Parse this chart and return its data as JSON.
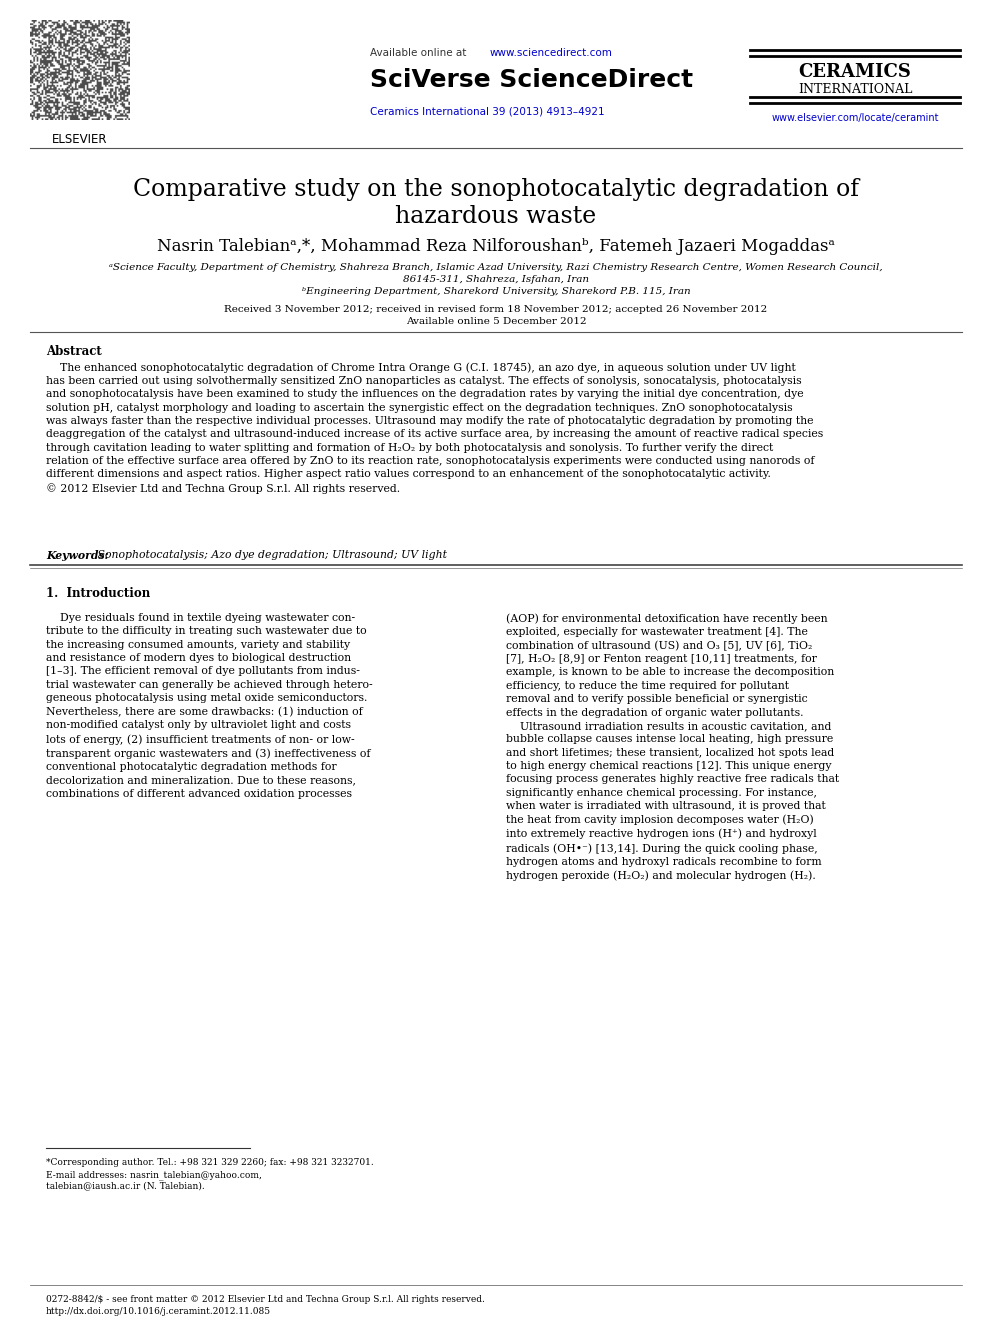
{
  "bg_color": "#ffffff",
  "available_online_pre": "Available online at ",
  "available_online_url": "www.sciencedirect.com",
  "sciverse_text": "SciVerse ScienceDirect",
  "ceramics_line1": "CERAMICS",
  "ceramics_line2": "INTERNATIONAL",
  "journal_ref_text": "Ceramics International 39 (2013) 4913–4921",
  "journal_url": "www.elsevier.com/locate/ceramint",
  "title_line1": "Comparative study on the sonophotocatalytic degradation of",
  "title_line2": "hazardous waste",
  "authors_text": "Nasrin Talebianᵃ,*, Mohammad Reza Nilforoushanᵇ, Fatemeh Jazaeri Mogaddasᵃ",
  "affil_a": "ᵃScience Faculty, Department of Chemistry, Shahreza Branch, Islamic Azad University, Razi Chemistry Research Centre, Women Research Council,",
  "affil_a2": "86145-311, Shahreza, Isfahan, Iran",
  "affil_b": "ᵇEngineering Department, Sharekord University, Sharekord P.B. 115, Iran",
  "date1": "Received 3 November 2012; received in revised form 18 November 2012; accepted 26 November 2012",
  "date2": "Available online 5 December 2012",
  "abstract_title": "Abstract",
  "abstract_body": "    The enhanced sonophotocatalytic degradation of Chrome Intra Orange G (C.I. 18745), an azo dye, in aqueous solution under UV light\nhas been carried out using solvothermally sensitized ZnO nanoparticles as catalyst. The effects of sonolysis, sonocatalysis, photocatalysis\nand sonophotocatalysis have been examined to study the influences on the degradation rates by varying the initial dye concentration, dye\nsolution pH, catalyst morphology and loading to ascertain the synergistic effect on the degradation techniques. ZnO sonophotocatalysis\nwas always faster than the respective individual processes. Ultrasound may modify the rate of photocatalytic degradation by promoting the\ndeaggregation of the catalyst and ultrasound-induced increase of its active surface area, by increasing the amount of reactive radical species\nthrough cavitation leading to water splitting and formation of H₂O₂ by both photocatalysis and sonolysis. To further verify the direct\nrelation of the effective surface area offered by ZnO to its reaction rate, sonophotocatalysis experiments were conducted using nanorods of\ndifferent dimensions and aspect ratios. Higher aspect ratio values correspond to an enhancement of the sonophotocatalytic activity.\n© 2012 Elsevier Ltd and Techna Group S.r.l. All rights reserved.",
  "keywords_label": "Keywords:",
  "keywords_rest": " Sonophotocatalysis; Azo dye degradation; Ultrasound; UV light",
  "section1_title": "1.  Introduction",
  "col1_intro": "    Dye residuals found in textile dyeing wastewater con-\ntribute to the difficulty in treating such wastewater due to\nthe increasing consumed amounts, variety and stability\nand resistance of modern dyes to biological destruction\n[1–3]. The efficient removal of dye pollutants from indus-\ntrial wastewater can generally be achieved through hetero-\ngeneous photocatalysis using metal oxide semiconductors.\nNevertheless, there are some drawbacks: (1) induction of\nnon-modified catalyst only by ultraviolet light and costs\nlots of energy, (2) insufficient treatments of non- or low-\ntransparent organic wastewaters and (3) ineffectiveness of\nconventional photocatalytic degradation methods for\ndecolorization and mineralization. Due to these reasons,\ncombinations of different advanced oxidation processes",
  "col2_intro": "(AOP) for environmental detoxification have recently been\nexploited, especially for wastewater treatment [4]. The\ncombination of ultrasound (US) and O₃ [5], UV [6], TiO₂\n[7], H₂O₂ [8,9] or Fenton reagent [10,11] treatments, for\nexample, is known to be able to increase the decomposition\nefficiency, to reduce the time required for pollutant\nremoval and to verify possible beneficial or synergistic\neffects in the degradation of organic water pollutants.\n    Ultrasound irradiation results in acoustic cavitation, and\nbubble collapse causes intense local heating, high pressure\nand short lifetimes; these transient, localized hot spots lead\nto high energy chemical reactions [12]. This unique energy\nfocusing process generates highly reactive free radicals that\nsignificantly enhance chemical processing. For instance,\nwhen water is irradiated with ultrasound, it is proved that\nthe heat from cavity implosion decomposes water (H₂O)\ninto extremely reactive hydrogen ions (H⁺) and hydroxyl\nradicals (OH•⁻) [13,14]. During the quick cooling phase,\nhydrogen atoms and hydroxyl radicals recombine to form\nhydrogen peroxide (H₂O₂) and molecular hydrogen (H₂).",
  "footnote1": "*Corresponding author. Tel.: +98 321 329 2260; fax: +98 321 3232701.",
  "footnote2": "E-mail addresses: nasrin_talebian@yahoo.com,",
  "footnote3": "talebian@iaush.ac.ir (N. Talebian).",
  "footer1": "0272-8842/$ - see front matter © 2012 Elsevier Ltd and Techna Group S.r.l. All rights reserved.",
  "footer2": "http://dx.doi.org/10.1016/j.ceramint.2012.11.085",
  "link_color": "#0000cc",
  "black": "#000000",
  "text_color": "#000000"
}
